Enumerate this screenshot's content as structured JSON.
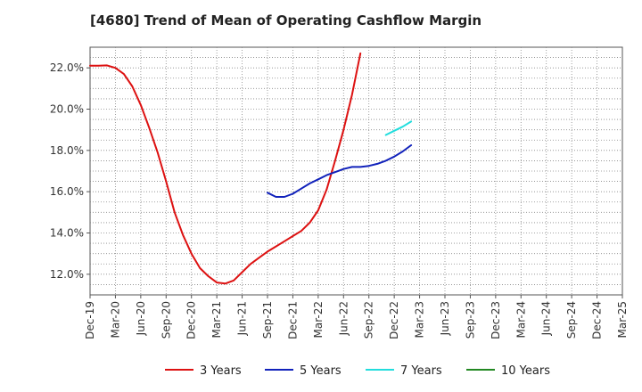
{
  "chart_data": {
    "type": "line",
    "title": "[4680]  Trend of Mean of Operating Cashflow Margin",
    "xlabel": "",
    "ylabel": "",
    "x_ticks": [
      "Dec-19",
      "Mar-20",
      "Jun-20",
      "Sep-20",
      "Dec-20",
      "Mar-21",
      "Jun-21",
      "Sep-21",
      "Dec-21",
      "Mar-22",
      "Jun-22",
      "Sep-22",
      "Dec-22",
      "Mar-23",
      "Jun-23",
      "Sep-23",
      "Dec-23",
      "Mar-24",
      "Jun-24",
      "Sep-24",
      "Dec-24",
      "Mar-25"
    ],
    "y_ticks": [
      "12.0%",
      "14.0%",
      "16.0%",
      "18.0%",
      "20.0%",
      "22.0%"
    ],
    "y_tick_values": [
      12,
      14,
      16,
      18,
      20,
      22
    ],
    "ylim": [
      11.0,
      23.0
    ],
    "grid": true,
    "legend_position": "bottom",
    "series": [
      {
        "name": "3 Years",
        "color": "#dd1111",
        "values": [
          22.1,
          22.1,
          22.12,
          22.0,
          21.7,
          21.1,
          20.2,
          19.1,
          17.9,
          16.5,
          15.0,
          13.9,
          13.0,
          12.3,
          11.9,
          11.6,
          11.55,
          11.7,
          12.1,
          12.5,
          12.8,
          13.1,
          13.35,
          13.6,
          13.85,
          14.1,
          14.5,
          15.1,
          16.1,
          17.5,
          19.0,
          20.7,
          22.7
        ],
        "x_start_index": 0,
        "step_quarters": 1
      },
      {
        "name": "5 Years",
        "color": "#1122bb",
        "values": [
          15.95,
          15.75,
          15.75,
          15.9,
          16.15,
          16.4,
          16.6,
          16.8,
          16.95,
          17.1,
          17.2,
          17.2,
          17.25,
          17.35,
          17.5,
          17.7,
          17.95,
          18.25
        ],
        "x_start_index": 21,
        "step_quarters": 1
      },
      {
        "name": "7 Years",
        "color": "#22dddd",
        "values": [
          18.75,
          18.95,
          19.15,
          19.4
        ],
        "x_start_index": 35,
        "step_quarters": 1
      },
      {
        "name": "10 Years",
        "color": "#228822",
        "values": [],
        "x_start_index": 0,
        "step_quarters": 1
      }
    ]
  }
}
